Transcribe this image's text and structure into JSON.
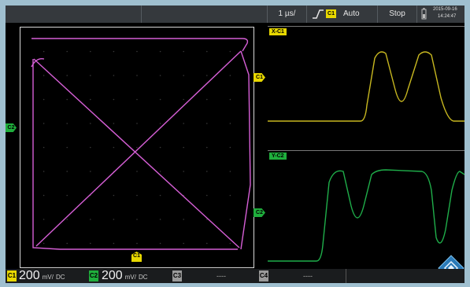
{
  "topbar": {
    "timebase": "1 µs/",
    "trigger_channel": "C1",
    "trigger_mode": "Auto",
    "run_state": "Stop",
    "date": "2015-09-16",
    "time": "14:24:47"
  },
  "panels": {
    "x_label": "X-C1",
    "y_label": "Y-C2"
  },
  "markers": {
    "xy_trigger": "C1",
    "xy_left": "C2",
    "x_panel": "C1",
    "y_panel": "C2"
  },
  "channels": [
    {
      "tag": "C1",
      "value": "200",
      "unit": "mV/",
      "coupling": "DC",
      "color": "#e8d800"
    },
    {
      "tag": "C2",
      "value": "200",
      "unit": "mV/",
      "coupling": "DC",
      "color": "#1fae3c"
    },
    {
      "tag": "C3",
      "value": "----",
      "color": "#9a9a9a"
    },
    {
      "tag": "C4",
      "value": "----",
      "color": "#9a9a9a"
    }
  ],
  "colors": {
    "xy_trace": "#d65fd6",
    "ch1_trace": "#c8b820",
    "ch2_trace": "#1fae4a",
    "grid_dot": "#3a3a3a"
  },
  "icons": [
    "trigger-edge-icon",
    "battery-icon",
    "menu-diamond-icon"
  ]
}
